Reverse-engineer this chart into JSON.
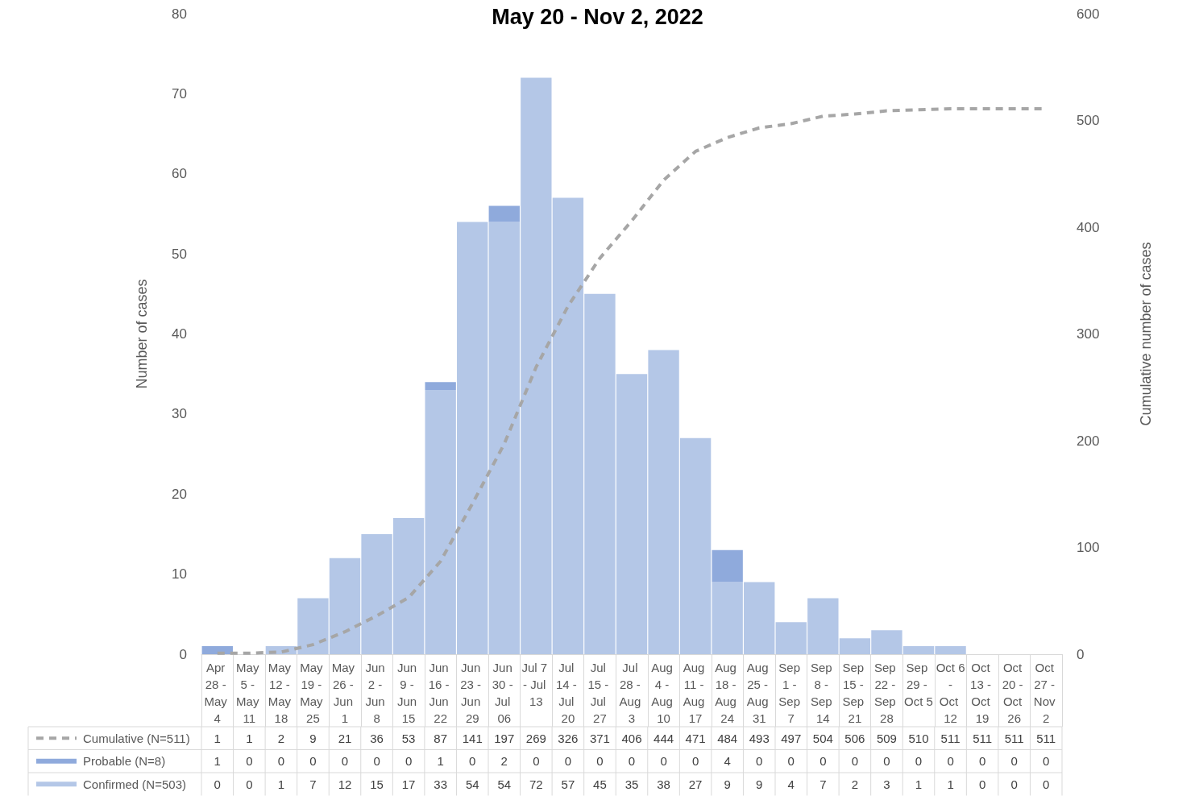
{
  "chart_data": {
    "type": "bar",
    "title": "May 20 - Nov 2, 2022",
    "ylabel": "Number of cases",
    "y2label": "Cumulative number of cases",
    "categories": [
      "Apr 28 - May 4",
      "May 5 - May 11",
      "May 12 - May 18",
      "May 19 - May 25",
      "May 26 - Jun 1",
      "Jun 2 - Jun 8",
      "Jun 9 - Jun 15",
      "Jun 16 - Jun 22",
      "Jun 23 - Jun 29",
      "Jun 30 - Jul 06",
      "Jul 7 - Jul 13",
      "Jul 14 - Jul 20",
      "Jul 15 - Jul 27",
      "Jul 28 - Aug 3",
      "Aug 4 - Aug 10",
      "Aug 11 - Aug 17",
      "Aug 18 - Aug 24",
      "Aug 25 - Aug 31",
      "Sep 1 - Sep 7",
      "Sep 8 - Sep 14",
      "Sep 15 - Sep 21",
      "Sep 22 - Sep 28",
      "Sep 29 - Oct 5",
      "Oct 6 - Oct 12",
      "Oct 13 - Oct 19",
      "Oct 20 - Oct 26",
      "Oct 27 - Nov 2"
    ],
    "stacked": true,
    "series": [
      {
        "name": "Confirmed (N=503)",
        "color": "#b4c7e7",
        "values": [
          0,
          0,
          1,
          7,
          12,
          15,
          17,
          33,
          54,
          54,
          72,
          57,
          45,
          35,
          38,
          27,
          9,
          9,
          4,
          7,
          2,
          3,
          1,
          1,
          0,
          0,
          0
        ]
      },
      {
        "name": "Probable (N=8)",
        "color": "#8faadc",
        "values": [
          1,
          0,
          0,
          0,
          0,
          0,
          0,
          1,
          0,
          2,
          0,
          0,
          0,
          0,
          0,
          0,
          4,
          0,
          0,
          0,
          0,
          0,
          0,
          0,
          0,
          0,
          0
        ]
      },
      {
        "name": "Cumulative (N=511)",
        "type": "line",
        "axis": "y2",
        "color": "#a6a6a6",
        "line_style": "dashed",
        "marker": "none",
        "values": [
          1,
          1,
          2,
          9,
          21,
          36,
          53,
          87,
          141,
          197,
          269,
          326,
          371,
          406,
          444,
          471,
          484,
          493,
          497,
          504,
          506,
          509,
          510,
          511,
          511,
          511,
          511
        ]
      }
    ],
    "ylim": [
      0,
      80
    ],
    "yticks": [
      0,
      10,
      20,
      30,
      40,
      50,
      60,
      70,
      80
    ],
    "y2lim": [
      0,
      600
    ],
    "y2ticks": [
      0,
      100,
      200,
      300,
      400,
      500,
      600
    ],
    "grid": false,
    "legend": "bottom",
    "data_labels": true
  }
}
